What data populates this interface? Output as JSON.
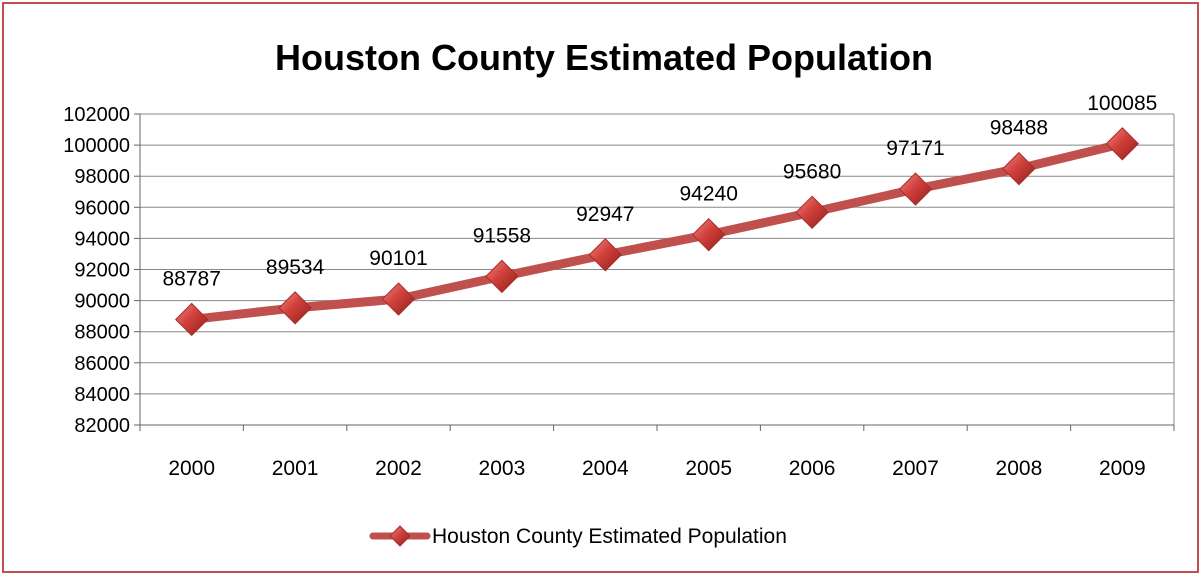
{
  "chart_data": {
    "type": "line",
    "title": "Houston County Estimated Population",
    "categories": [
      "2000",
      "2001",
      "2002",
      "2003",
      "2004",
      "2005",
      "2006",
      "2007",
      "2008",
      "2009"
    ],
    "series": [
      {
        "name": "Houston County Estimated Population",
        "values": [
          88787,
          89534,
          90101,
          91558,
          92947,
          94240,
          95680,
          97171,
          98488,
          100085
        ],
        "data_labels": [
          "88787",
          "89534",
          "90101",
          "91558",
          "92947",
          "94240",
          "95680",
          "97171",
          "98488",
          "100085"
        ]
      }
    ],
    "y_ticks": [
      "82000",
      "84000",
      "86000",
      "88000",
      "90000",
      "92000",
      "94000",
      "96000",
      "98000",
      "100000",
      "102000"
    ],
    "ylim": [
      82000,
      102000
    ],
    "xlabel": "",
    "ylabel": "",
    "grid": true,
    "legend_position": "bottom",
    "colors": {
      "line": "#c0504d",
      "marker": "#c8403c",
      "border": "#c0504d",
      "grid": "#888888"
    }
  }
}
